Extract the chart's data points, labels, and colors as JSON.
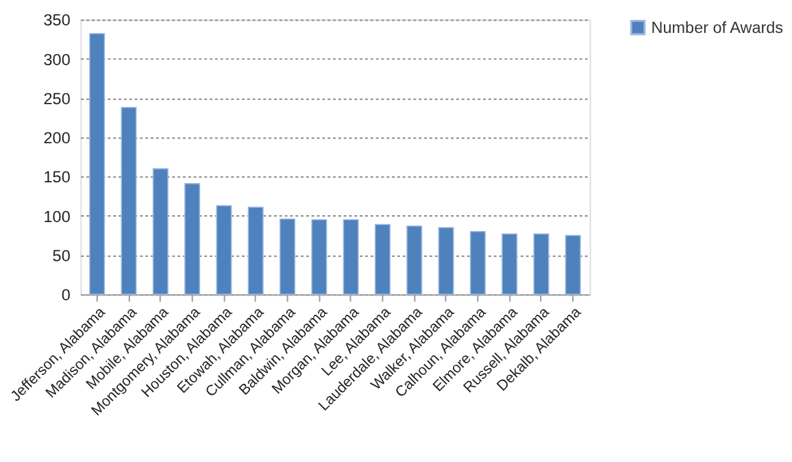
{
  "chart_data": {
    "type": "bar",
    "categories": [
      "Jefferson, Alabama",
      "Madison, Alabama",
      "Mobile, Alabama",
      "Montgomery, Alabama",
      "Houston, Alabama",
      "Etowah, Alabama",
      "Cullman, Alabama",
      "Baldwin, Alabama",
      "Morgan, Alabama",
      "Lee, Alabama",
      "Lauderdale, Alabama",
      "Walker, Alabama",
      "Calhoun, Alabama",
      "Elmore, Alabama",
      "Russell, Alabama",
      "Dekalb, Alabama"
    ],
    "series": [
      {
        "name": "Number of Awards",
        "color": "#4f81bd",
        "values": [
          332,
          238,
          160,
          141,
          113,
          111,
          96,
          95,
          95,
          89,
          87,
          85,
          80,
          77,
          77,
          75
        ]
      }
    ],
    "ylim": [
      0,
      350
    ],
    "yticks": [
      0,
      50,
      100,
      150,
      200,
      250,
      300,
      350
    ],
    "grid": "y",
    "legend": "right"
  }
}
